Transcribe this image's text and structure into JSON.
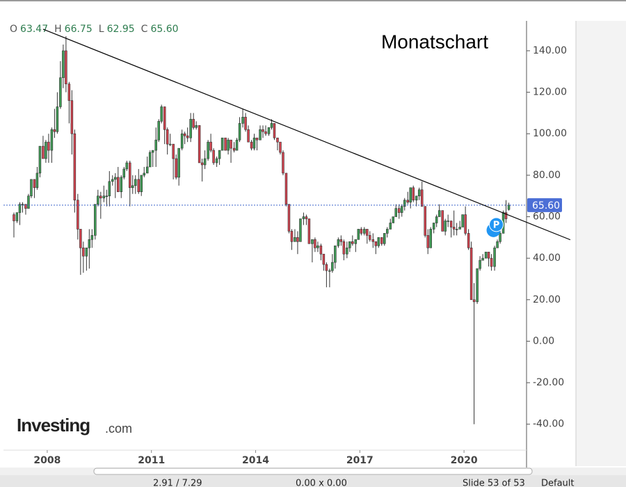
{
  "chart_data": {
    "type": "candlestick",
    "title": "Monatschart",
    "ohlc_letters": [
      "O",
      "H",
      "L",
      "C"
    ],
    "last_labels": [
      "63.47",
      "66.75",
      "62.95",
      "65.60"
    ],
    "up_color": "#3f9a55",
    "down_color": "#d1434f",
    "current_line_color": "#3b63c9",
    "xlim": [
      2006.74,
      2021.8
    ],
    "xticks": [
      2008,
      2011,
      2014,
      2017,
      2020
    ],
    "ylim": [
      -52.5,
      153.4
    ],
    "yticks": [
      {
        "value": 140,
        "label": "140.00"
      },
      {
        "value": 120,
        "label": "120.00"
      },
      {
        "value": 100,
        "label": "100.00"
      },
      {
        "value": 80,
        "label": "80.00"
      },
      {
        "value": 60,
        "label": "60.00"
      },
      {
        "value": 40,
        "label": "40.00"
      },
      {
        "value": 20,
        "label": "20.00"
      },
      {
        "value": 0,
        "label": "0.00"
      },
      {
        "value": -20,
        "label": "-20.00"
      },
      {
        "value": -40,
        "label": "-40.00"
      }
    ],
    "trendline": {
      "x": [
        2007.88,
        2023.06
      ],
      "y": [
        150.4,
        48.9
      ]
    },
    "marker_label": "P",
    "logo": [
      "Investing",
      ".com"
    ],
    "status_bar": [
      "2.91 / 7.29",
      "0.00 x 0.00",
      "Slide 53 of 53",
      "Default"
    ],
    "x": [
      2007.04,
      2007.13,
      2007.21,
      2007.29,
      2007.38,
      2007.46,
      2007.54,
      2007.63,
      2007.71,
      2007.79,
      2007.88,
      2007.96,
      2008.04,
      2008.13,
      2008.21,
      2008.29,
      2008.38,
      2008.46,
      2008.54,
      2008.63,
      2008.71,
      2008.79,
      2008.88,
      2008.96,
      2009.04,
      2009.13,
      2009.21,
      2009.29,
      2009.38,
      2009.46,
      2009.54,
      2009.63,
      2009.71,
      2009.79,
      2009.88,
      2009.96,
      2010.04,
      2010.13,
      2010.21,
      2010.29,
      2010.38,
      2010.46,
      2010.54,
      2010.63,
      2010.71,
      2010.79,
      2010.88,
      2010.96,
      2011.04,
      2011.13,
      2011.21,
      2011.29,
      2011.38,
      2011.46,
      2011.54,
      2011.63,
      2011.71,
      2011.79,
      2011.88,
      2011.96,
      2012.04,
      2012.13,
      2012.21,
      2012.29,
      2012.38,
      2012.46,
      2012.54,
      2012.63,
      2012.71,
      2012.79,
      2012.88,
      2012.96,
      2013.04,
      2013.13,
      2013.21,
      2013.29,
      2013.38,
      2013.46,
      2013.54,
      2013.63,
      2013.71,
      2013.79,
      2013.88,
      2013.96,
      2014.04,
      2014.13,
      2014.21,
      2014.29,
      2014.38,
      2014.46,
      2014.54,
      2014.63,
      2014.71,
      2014.79,
      2014.88,
      2014.96,
      2015.04,
      2015.13,
      2015.21,
      2015.29,
      2015.38,
      2015.46,
      2015.54,
      2015.63,
      2015.71,
      2015.79,
      2015.88,
      2015.96,
      2016.04,
      2016.13,
      2016.21,
      2016.29,
      2016.38,
      2016.46,
      2016.54,
      2016.63,
      2016.71,
      2016.79,
      2016.88,
      2016.96,
      2017.04,
      2017.13,
      2017.21,
      2017.29,
      2017.38,
      2017.46,
      2017.54,
      2017.63,
      2017.71,
      2017.79,
      2017.88,
      2017.96,
      2018.04,
      2018.13,
      2018.21,
      2018.29,
      2018.38,
      2018.46,
      2018.54,
      2018.63,
      2018.71,
      2018.79,
      2018.88,
      2018.96,
      2019.04,
      2019.13,
      2019.21,
      2019.29,
      2019.38,
      2019.46,
      2019.54,
      2019.63,
      2019.71,
      2019.79,
      2019.88,
      2019.96,
      2020.04,
      2020.13,
      2020.21,
      2020.29,
      2020.38,
      2020.46,
      2020.54,
      2020.63,
      2020.71,
      2020.79,
      2020.88,
      2020.96,
      2021.04,
      2021.13,
      2021.21,
      2021.29
    ],
    "ohlc": [
      [
        61,
        62,
        50,
        58
      ],
      [
        58,
        62,
        57,
        62
      ],
      [
        62,
        67,
        56,
        66
      ],
      [
        66,
        67,
        62,
        66
      ],
      [
        66,
        66,
        61,
        64
      ],
      [
        64,
        71,
        64,
        70
      ],
      [
        70,
        78,
        69,
        78
      ],
      [
        78,
        78,
        69,
        74
      ],
      [
        74,
        84,
        73,
        81
      ],
      [
        81,
        94,
        79,
        94
      ],
      [
        94,
        99,
        88,
        88
      ],
      [
        88,
        97,
        86,
        96
      ],
      [
        96,
        100,
        86,
        92
      ],
      [
        92,
        103,
        86,
        102
      ],
      [
        102,
        112,
        98,
        101
      ],
      [
        101,
        120,
        100,
        113
      ],
      [
        113,
        135,
        112,
        127
      ],
      [
        127,
        143,
        122,
        140
      ],
      [
        140,
        147,
        120,
        124
      ],
      [
        124,
        125,
        105,
        116
      ],
      [
        116,
        121,
        90,
        100
      ],
      [
        100,
        102,
        62,
        68
      ],
      [
        68,
        71,
        49,
        54
      ],
      [
        54,
        54,
        32,
        45
      ],
      [
        45,
        48,
        33,
        41
      ],
      [
        41,
        45,
        34,
        45
      ],
      [
        45,
        54,
        35,
        49
      ],
      [
        49,
        54,
        45,
        51
      ],
      [
        51,
        66,
        49,
        66
      ],
      [
        66,
        73,
        65,
        70
      ],
      [
        70,
        72,
        59,
        69
      ],
      [
        69,
        75,
        67,
        70
      ],
      [
        70,
        73,
        65,
        70
      ],
      [
        70,
        82,
        65,
        77
      ],
      [
        77,
        80,
        75,
        78
      ],
      [
        78,
        81,
        69,
        79
      ],
      [
        79,
        84,
        72,
        72
      ],
      [
        72,
        80,
        69,
        79
      ],
      [
        79,
        84,
        78,
        83
      ],
      [
        83,
        87,
        82,
        86
      ],
      [
        86,
        87,
        65,
        74
      ],
      [
        74,
        80,
        71,
        75
      ],
      [
        75,
        80,
        71,
        78
      ],
      [
        78,
        83,
        71,
        72
      ],
      [
        72,
        80,
        70,
        80
      ],
      [
        80,
        84,
        79,
        81
      ],
      [
        81,
        89,
        81,
        84
      ],
      [
        84,
        92,
        85,
        91
      ],
      [
        91,
        92,
        84,
        92
      ],
      [
        92,
        103,
        84,
        97
      ],
      [
        97,
        107,
        96,
        106
      ],
      [
        106,
        114,
        105,
        113
      ],
      [
        113,
        113,
        95,
        102
      ],
      [
        102,
        103,
        90,
        95
      ],
      [
        95,
        100,
        94,
        95
      ],
      [
        95,
        95,
        78,
        88
      ],
      [
        88,
        90,
        78,
        79
      ],
      [
        79,
        93,
        75,
        93
      ],
      [
        93,
        102,
        92,
        100
      ],
      [
        100,
        101,
        95,
        99
      ],
      [
        99,
        103,
        96,
        98
      ],
      [
        98,
        110,
        96,
        107
      ],
      [
        107,
        110,
        102,
        103
      ],
      [
        103,
        106,
        102,
        104
      ],
      [
        104,
        104,
        86,
        86
      ],
      [
        86,
        88,
        77,
        85
      ],
      [
        85,
        92,
        83,
        88
      ],
      [
        88,
        97,
        87,
        96
      ],
      [
        96,
        100,
        91,
        92
      ],
      [
        92,
        93,
        85,
        86
      ],
      [
        86,
        89,
        84,
        88
      ],
      [
        88,
        92,
        85,
        92
      ],
      [
        92,
        98,
        92,
        98
      ],
      [
        98,
        98,
        92,
        92
      ],
      [
        92,
        98,
        90,
        97
      ],
      [
        97,
        97,
        86,
        93
      ],
      [
        93,
        96,
        91,
        92
      ],
      [
        92,
        98,
        92,
        97
      ],
      [
        97,
        108,
        96,
        105
      ],
      [
        105,
        112,
        103,
        108
      ],
      [
        108,
        110,
        101,
        102
      ],
      [
        102,
        104,
        96,
        96
      ],
      [
        96,
        97,
        92,
        93
      ],
      [
        93,
        100,
        92,
        98
      ],
      [
        98,
        98,
        92,
        97
      ],
      [
        97,
        104,
        97,
        102
      ],
      [
        102,
        104,
        98,
        101
      ],
      [
        101,
        104,
        99,
        100
      ],
      [
        100,
        103,
        99,
        103
      ],
      [
        103,
        107,
        102,
        105
      ],
      [
        105,
        105,
        97,
        98
      ],
      [
        98,
        98,
        92,
        96
      ],
      [
        96,
        96,
        90,
        91
      ],
      [
        91,
        92,
        80,
        81
      ],
      [
        81,
        81,
        65,
        66
      ],
      [
        66,
        66,
        52,
        53
      ],
      [
        53,
        54,
        44,
        48
      ],
      [
        48,
        54,
        48,
        50
      ],
      [
        50,
        53,
        42,
        48
      ],
      [
        48,
        59,
        48,
        59
      ],
      [
        59,
        62,
        56,
        60
      ],
      [
        60,
        61,
        56,
        59
      ],
      [
        59,
        59,
        47,
        47
      ],
      [
        47,
        49,
        38,
        49
      ],
      [
        49,
        50,
        43,
        45
      ],
      [
        45,
        48,
        43,
        46
      ],
      [
        46,
        47,
        39,
        42
      ],
      [
        42,
        42,
        34,
        37
      ],
      [
        37,
        38,
        26,
        34
      ],
      [
        34,
        35,
        26,
        34
      ],
      [
        34,
        42,
        33,
        38
      ],
      [
        38,
        46,
        35,
        46
      ],
      [
        46,
        50,
        45,
        49
      ],
      [
        49,
        51,
        46,
        48
      ],
      [
        48,
        49,
        39,
        42
      ],
      [
        42,
        48,
        40,
        45
      ],
      [
        45,
        48,
        43,
        48
      ],
      [
        48,
        51,
        46,
        47
      ],
      [
        47,
        49,
        43,
        49
      ],
      [
        49,
        54,
        49,
        54
      ],
      [
        54,
        55,
        51,
        52
      ],
      [
        52,
        55,
        51,
        54
      ],
      [
        54,
        54,
        47,
        51
      ],
      [
        51,
        53,
        48,
        49
      ],
      [
        49,
        52,
        45,
        48
      ],
      [
        48,
        48,
        42,
        46
      ],
      [
        46,
        50,
        45,
        50
      ],
      [
        50,
        50,
        46,
        47
      ],
      [
        47,
        52,
        46,
        52
      ],
      [
        52,
        55,
        50,
        54
      ],
      [
        54,
        59,
        54,
        57
      ],
      [
        57,
        60,
        57,
        60
      ],
      [
        60,
        66,
        60,
        64
      ],
      [
        64,
        66,
        59,
        62
      ],
      [
        62,
        66,
        60,
        65
      ],
      [
        65,
        69,
        63,
        68
      ],
      [
        68,
        72,
        66,
        67
      ],
      [
        67,
        74,
        64,
        74
      ],
      [
        74,
        75,
        67,
        68
      ],
      [
        68,
        70,
        65,
        70
      ],
      [
        70,
        74,
        68,
        73
      ],
      [
        73,
        77,
        65,
        65
      ],
      [
        65,
        65,
        50,
        51
      ],
      [
        51,
        54,
        42,
        45
      ],
      [
        45,
        55,
        45,
        54
      ],
      [
        54,
        57,
        52,
        57
      ],
      [
        57,
        61,
        55,
        60
      ],
      [
        60,
        66,
        60,
        63
      ],
      [
        63,
        63,
        53,
        53
      ],
      [
        53,
        59,
        51,
        58
      ],
      [
        58,
        61,
        55,
        58
      ],
      [
        58,
        58,
        50,
        55
      ],
      [
        55,
        63,
        51,
        54
      ],
      [
        54,
        57,
        51,
        54
      ],
      [
        54,
        58,
        54,
        55
      ],
      [
        55,
        61,
        55,
        61
      ],
      [
        61,
        65,
        51,
        52
      ],
      [
        52,
        54,
        44,
        45
      ],
      [
        45,
        48,
        20,
        20
      ],
      [
        20,
        28,
        -40,
        19
      ],
      [
        19,
        35,
        18,
        35
      ],
      [
        35,
        41,
        34,
        39
      ],
      [
        39,
        42,
        39,
        40
      ],
      [
        40,
        43,
        40,
        43
      ],
      [
        43,
        43,
        36,
        40
      ],
      [
        40,
        42,
        34,
        36
      ],
      [
        36,
        46,
        34,
        45
      ],
      [
        45,
        49,
        45,
        48
      ],
      [
        48,
        54,
        47,
        52
      ],
      [
        52,
        63,
        52,
        62
      ],
      [
        62,
        68,
        57,
        59
      ],
      [
        63.47,
        66.75,
        62.95,
        65.6
      ]
    ]
  }
}
